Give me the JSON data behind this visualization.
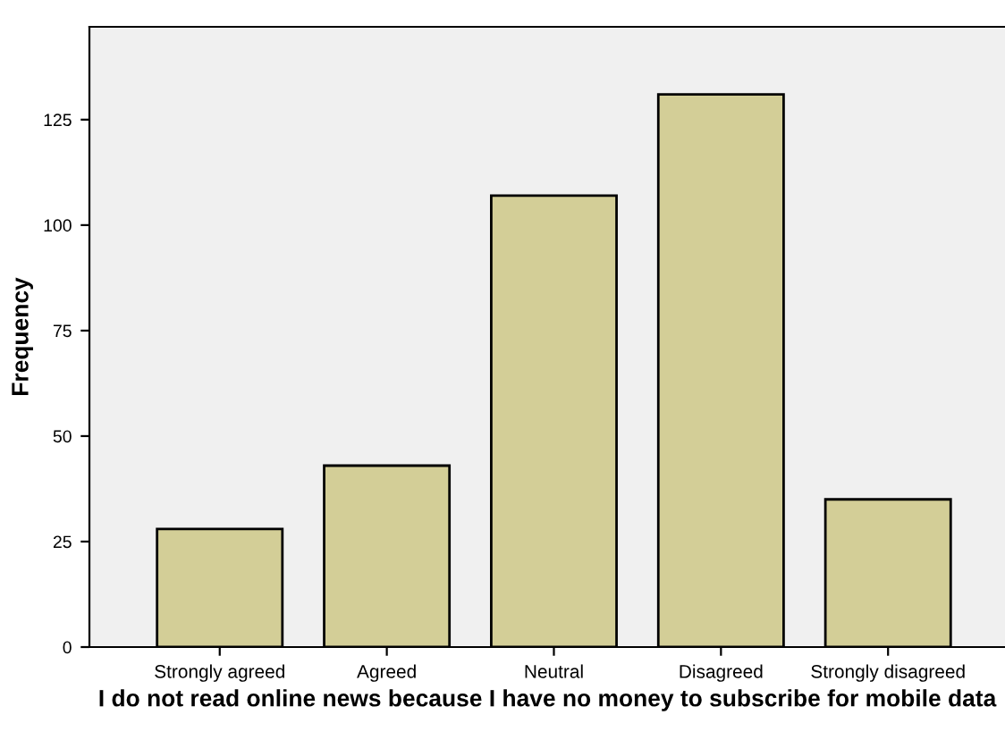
{
  "chart_data": {
    "type": "bar",
    "xlabel": "I do not read online news because I have no money to subscribe for mobile data",
    "ylabel": "Frequency",
    "categories": [
      "Strongly agreed",
      "Agreed",
      "Neutral",
      "Disagreed",
      "Strongly disagreed"
    ],
    "values": [
      28,
      43,
      107,
      131,
      35
    ],
    "color": "#d3ce97",
    "ylim": [
      0,
      147
    ],
    "yticks": [
      0,
      25,
      50,
      75,
      100,
      125
    ],
    "grid": false
  }
}
